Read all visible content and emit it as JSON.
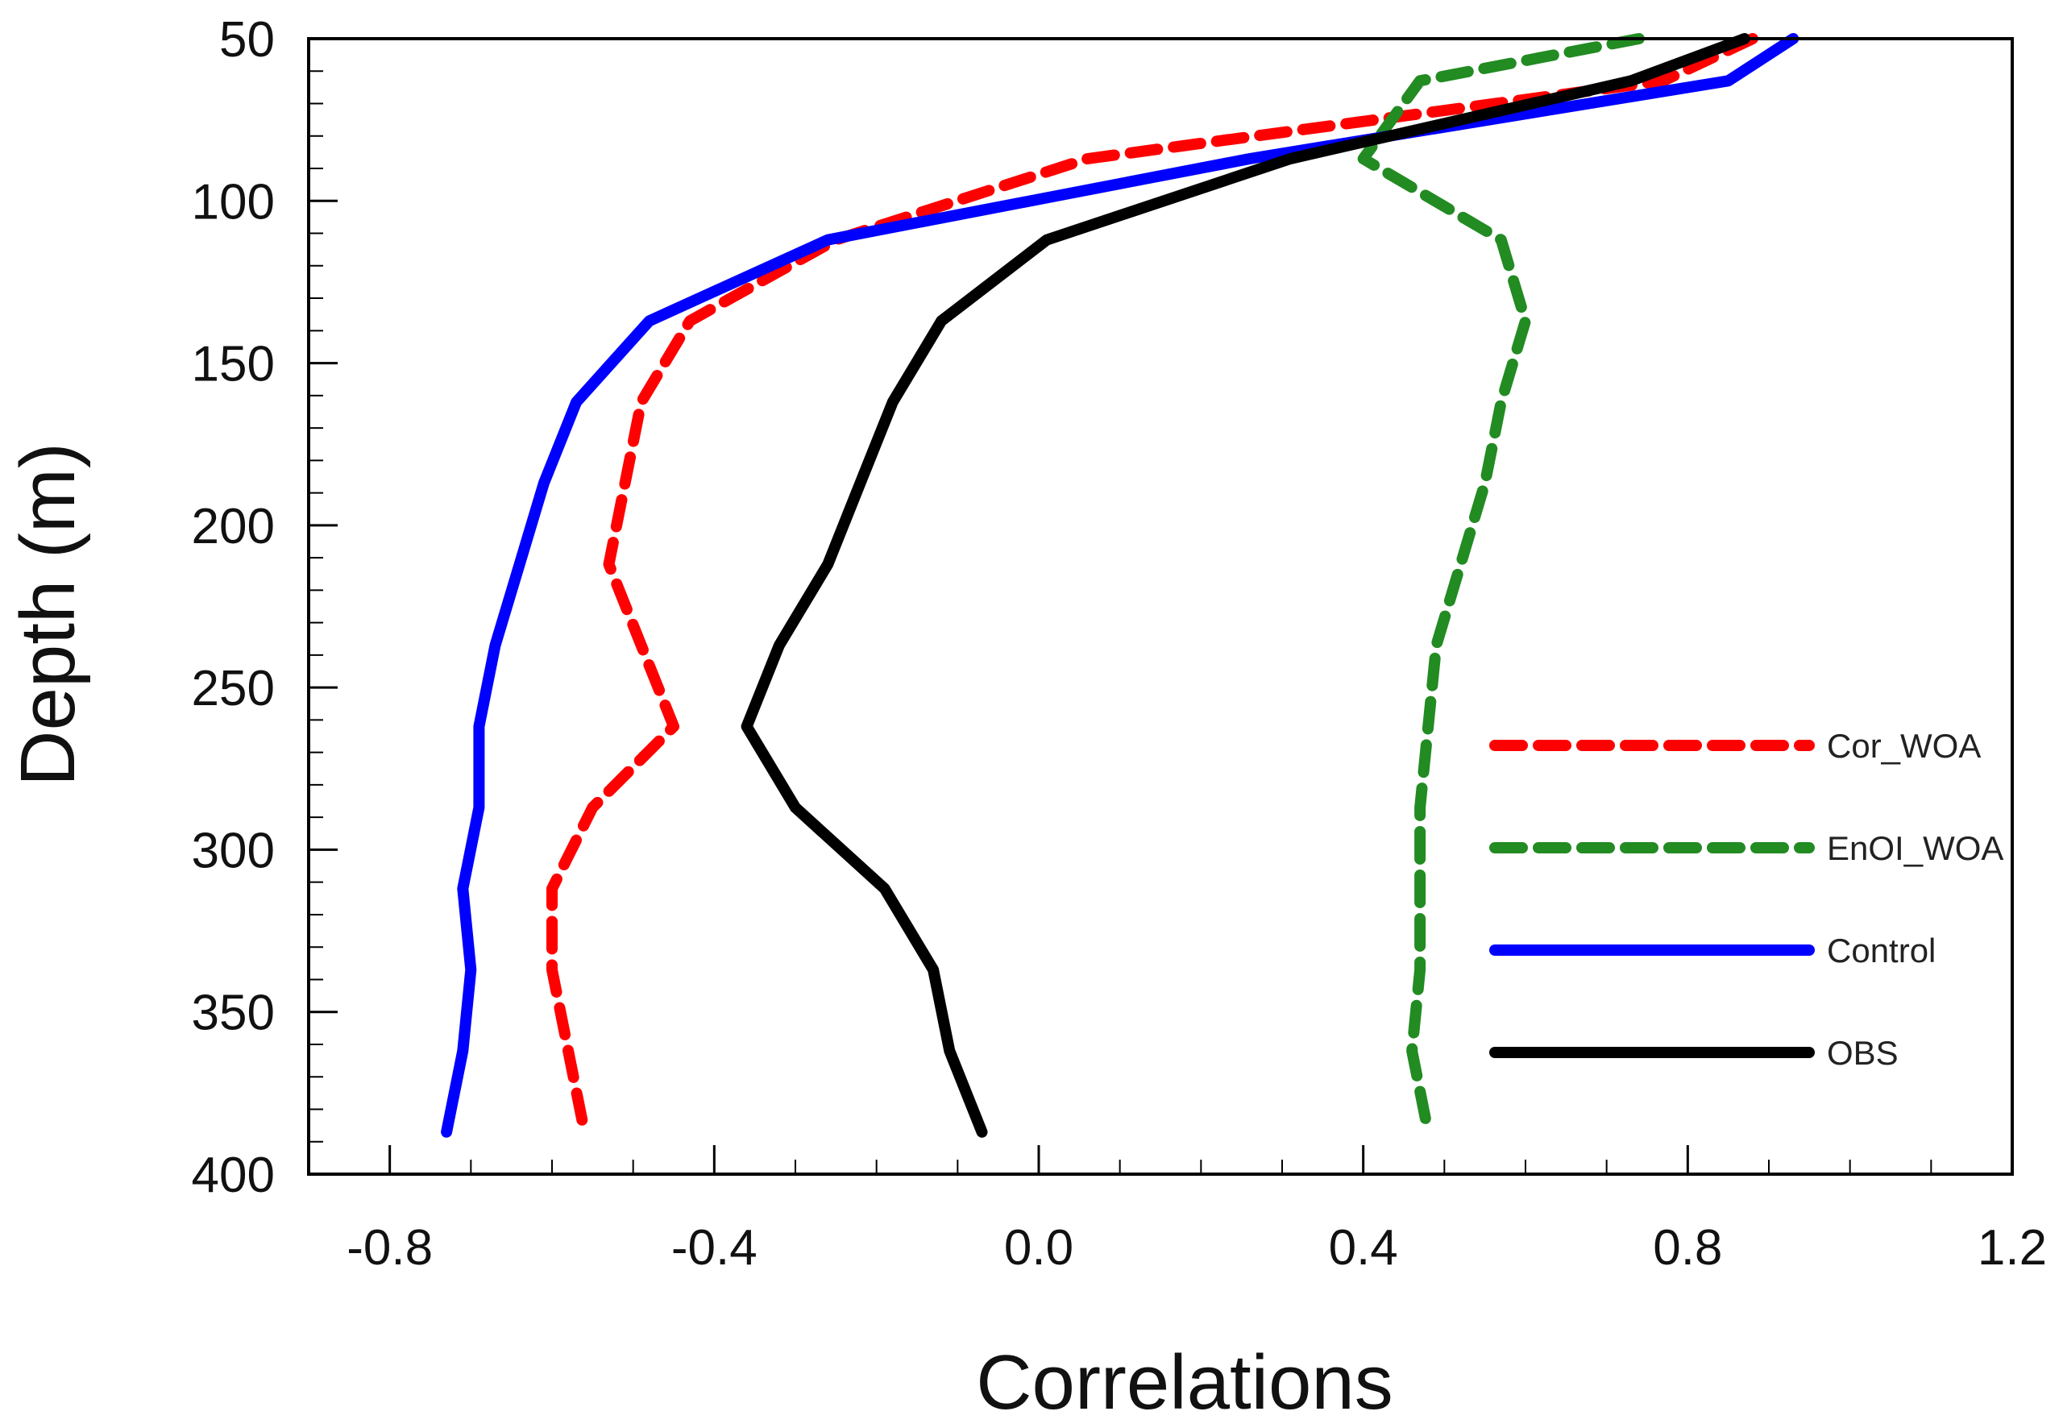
{
  "chart_data": {
    "type": "line",
    "title": "",
    "xlabel": "Correlations",
    "ylabel": "Depth (m)",
    "xlim": [
      -0.9,
      1.2
    ],
    "ylim": [
      50,
      400
    ],
    "y_inverted": true,
    "x_ticks": [
      -0.8,
      -0.4,
      0.0,
      0.4,
      0.8,
      1.2
    ],
    "x_tick_labels": [
      "-0.8",
      "-0.4",
      "0.0",
      "0.4",
      "0.8",
      "1.2"
    ],
    "y_ticks": [
      50,
      100,
      150,
      200,
      250,
      300,
      350,
      400
    ],
    "y_tick_labels": [
      "50",
      "100",
      "150",
      "200",
      "250",
      "300",
      "350",
      "400"
    ],
    "depths": [
      50,
      63,
      87,
      112,
      137,
      162,
      187,
      212,
      237,
      262,
      287,
      312,
      337,
      362,
      387
    ],
    "series": [
      {
        "name": "Cor_WOA",
        "color": "#ff0000",
        "style": "dashed",
        "values": [
          0.88,
          0.77,
          0.06,
          -0.25,
          -0.43,
          -0.49,
          -0.51,
          -0.53,
          -0.49,
          -0.45,
          -0.55,
          -0.6,
          -0.6,
          -0.58,
          -0.56
        ]
      },
      {
        "name": "EnOI_WOA",
        "color": "#228b22",
        "style": "dashed",
        "values": [
          0.74,
          0.47,
          0.4,
          0.57,
          0.6,
          0.57,
          0.55,
          0.52,
          0.49,
          0.48,
          0.47,
          0.47,
          0.47,
          0.46,
          0.48
        ]
      },
      {
        "name": "Control",
        "color": "#0000ff",
        "style": "solid",
        "values": [
          0.93,
          0.85,
          0.26,
          -0.26,
          -0.48,
          -0.57,
          -0.61,
          -0.64,
          -0.67,
          -0.69,
          -0.69,
          -0.71,
          -0.7,
          -0.71,
          -0.73
        ]
      },
      {
        "name": "OBS",
        "color": "#000000",
        "style": "solid",
        "values": [
          0.87,
          0.73,
          0.31,
          0.01,
          -0.12,
          -0.18,
          -0.22,
          -0.26,
          -0.32,
          -0.36,
          -0.3,
          -0.19,
          -0.13,
          -0.11,
          -0.07
        ]
      }
    ],
    "legend_position": "bottom-right"
  }
}
